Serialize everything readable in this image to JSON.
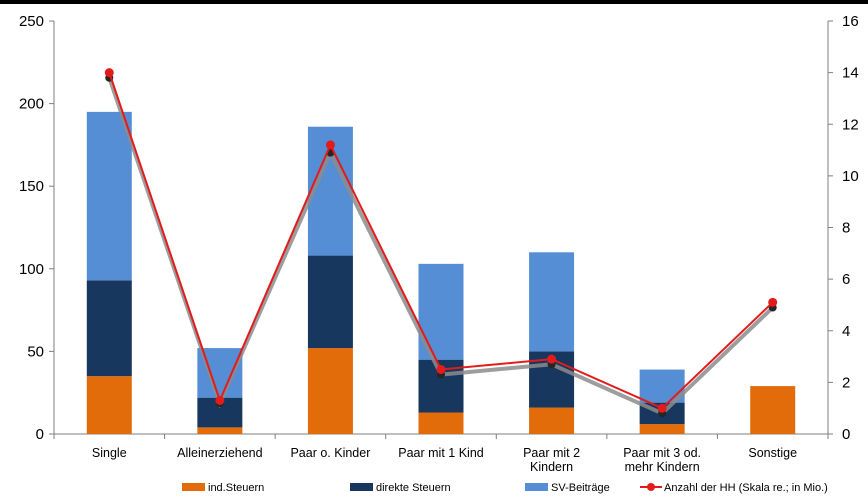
{
  "chart_data": {
    "type": "bar",
    "stacked": true,
    "categories": [
      [
        "Single"
      ],
      [
        "Alleinerziehend"
      ],
      [
        "Paar o. Kinder"
      ],
      [
        "Paar mit 1 Kind"
      ],
      [
        "Paar mit 2",
        "Kindern"
      ],
      [
        "Paar mit 3 od.",
        "mehr Kindern"
      ],
      [
        "Sonstige"
      ]
    ],
    "series": [
      {
        "name": "ind.Steuern",
        "color": "#e36c0a",
        "values": [
          35,
          4,
          52,
          13,
          16,
          6,
          29
        ]
      },
      {
        "name": "direkte Steuern",
        "color": "#17375e",
        "values": [
          58,
          18,
          56,
          32,
          34,
          13,
          0
        ]
      },
      {
        "name": "SV-Beiträge",
        "color": "#558ed5",
        "values": [
          102,
          30,
          78,
          58,
          60,
          20,
          0
        ]
      }
    ],
    "line_series": [
      {
        "name": "Anzahl der HH (Skala re.; in Mio.)",
        "axis": "right",
        "color": "#e31b1b",
        "values": [
          14.0,
          1.3,
          11.2,
          2.5,
          2.9,
          1.0,
          5.1
        ]
      }
    ],
    "shadow_line_values": [
      13.8,
      1.2,
      10.9,
      2.3,
      2.7,
      0.8,
      4.9
    ],
    "y_left": {
      "min": 0,
      "max": 250,
      "ticks": [
        0,
        50,
        100,
        150,
        200,
        250
      ]
    },
    "y_right": {
      "min": 0,
      "max": 16,
      "ticks": [
        0,
        2,
        4,
        6,
        8,
        10,
        12,
        14,
        16
      ]
    },
    "legend_position": "bottom",
    "grid": false
  }
}
